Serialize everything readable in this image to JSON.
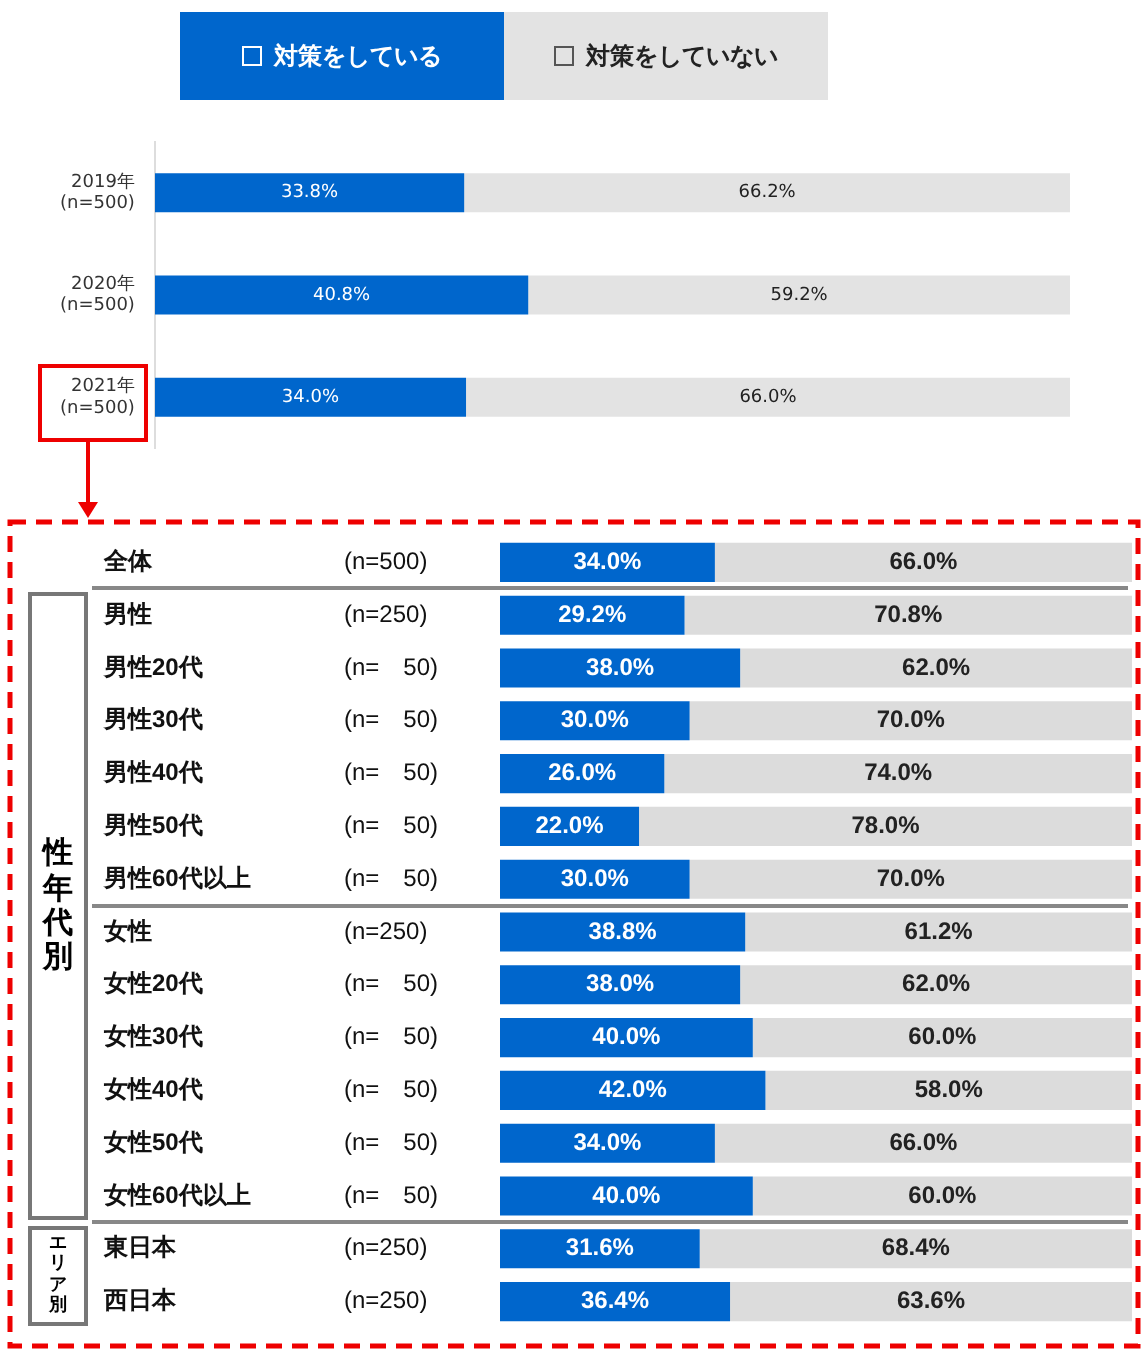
{
  "chart_data": [
    {
      "type": "bar",
      "orientation": "horizontal",
      "stacked": true,
      "legend": "top",
      "tick_labels": "y",
      "xlim": [
        0,
        100
      ],
      "categories": [
        "2019年\n(n=500)",
        "2020年\n(n=500)",
        "2021年\n(n=500)"
      ],
      "series": [
        {
          "name": "対策をしている",
          "color": "#0066cc",
          "values": [
            33.8,
            40.8,
            34.0
          ],
          "value_labels": [
            "33.8%",
            "40.8%",
            "34.0%"
          ]
        },
        {
          "name": "対策をしていない",
          "color": "#e3e3e3",
          "values": [
            66.2,
            59.2,
            66.0
          ],
          "value_labels": [
            "66.2%",
            "59.2%",
            "66.0%"
          ]
        }
      ]
    },
    {
      "type": "bar",
      "orientation": "horizontal",
      "stacked": true,
      "legend": false,
      "tick_labels": "y",
      "xlim": [
        0,
        100
      ],
      "categories": [
        "全体 (n=500)",
        "男性 (n=250)",
        "男性20代 (n=  50)",
        "男性30代 (n=  50)",
        "男性40代 (n=  50)",
        "男性50代 (n=  50)",
        "男性60代以上 (n=  50)",
        "女性 (n=250)",
        "女性20代 (n=  50)",
        "女性30代 (n=  50)",
        "女性40代 (n=  50)",
        "女性50代 (n=  50)",
        "女性60代以上 (n=  50)",
        "東日本 (n=250)",
        "西日本 (n=250)"
      ],
      "series": [
        {
          "color": "#0066cc",
          "values": [
            34.0,
            29.2,
            38.0,
            30.0,
            26.0,
            22.0,
            30.0,
            38.8,
            38.0,
            40.0,
            42.0,
            34.0,
            40.0,
            31.6,
            36.4
          ],
          "value_labels": [
            "34.0%",
            "29.2%",
            "38.0%",
            "30.0%",
            "26.0%",
            "22.0%",
            "30.0%",
            "38.8%",
            "38.0%",
            "40.0%",
            "42.0%",
            "34.0%",
            "40.0%",
            "31.6%",
            "36.4%"
          ]
        },
        {
          "color": "#dcdcdc",
          "values": [
            66.0,
            70.8,
            62.0,
            70.0,
            74.0,
            78.0,
            70.0,
            61.2,
            62.0,
            60.0,
            58.0,
            66.0,
            60.0,
            68.4,
            63.6
          ],
          "value_labels": [
            "66.0%",
            "70.8%",
            "62.0%",
            "70.0%",
            "74.0%",
            "78.0%",
            "70.0%",
            "61.2%",
            "62.0%",
            "60.0%",
            "58.0%",
            "66.0%",
            "60.0%",
            "68.4%",
            "63.6%"
          ]
        }
      ],
      "annotations": [
        "性年代別",
        "エリア別"
      ]
    }
  ]
}
